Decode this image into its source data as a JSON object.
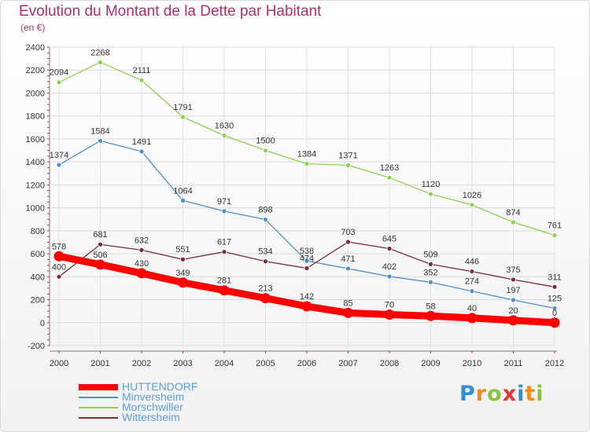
{
  "chart_data": {
    "type": "line",
    "title": "Evolution du Montant de la Dette par Habitant",
    "subtitle": "(en €)",
    "x": [
      "2000",
      "2001",
      "2002",
      "2003",
      "2004",
      "2005",
      "2006",
      "2007",
      "2008",
      "2009",
      "2010",
      "2011",
      "2012"
    ],
    "yticks": [
      "-200",
      "0",
      "200",
      "400",
      "600",
      "800",
      "1000",
      "1200",
      "1400",
      "1600",
      "1800",
      "2000",
      "2200",
      "2400"
    ],
    "ylim": [
      -200,
      2400
    ],
    "grid": true,
    "legend_position": "bottom-left",
    "series": [
      {
        "name": "HUTTENDORF",
        "color": "#ff0000",
        "values": [
          578,
          506,
          430,
          349,
          281,
          213,
          142,
          85,
          70,
          58,
          40,
          20,
          0
        ]
      },
      {
        "name": "Minversheim",
        "color": "#4d8fcf",
        "values": [
          1374,
          1584,
          1491,
          1064,
          971,
          898,
          538,
          471,
          402,
          352,
          274,
          197,
          125
        ]
      },
      {
        "name": "Morschwiller",
        "color": "#8fd14f",
        "values": [
          2094,
          2268,
          2111,
          1791,
          1630,
          1500,
          1384,
          1371,
          1263,
          1120,
          1026,
          874,
          761
        ]
      },
      {
        "name": "Wittersheim",
        "color": "#7a2b34",
        "values": [
          400,
          681,
          632,
          551,
          617,
          534,
          474,
          703,
          645,
          509,
          446,
          375,
          311
        ]
      }
    ]
  },
  "logo": {
    "text": "Proxiti",
    "colors": [
      "#2f8fd8",
      "#f08a1c",
      "#8ac43f",
      "#e0353a",
      "#2f8fd8",
      "#f08a1c",
      "#8ac43f"
    ]
  }
}
